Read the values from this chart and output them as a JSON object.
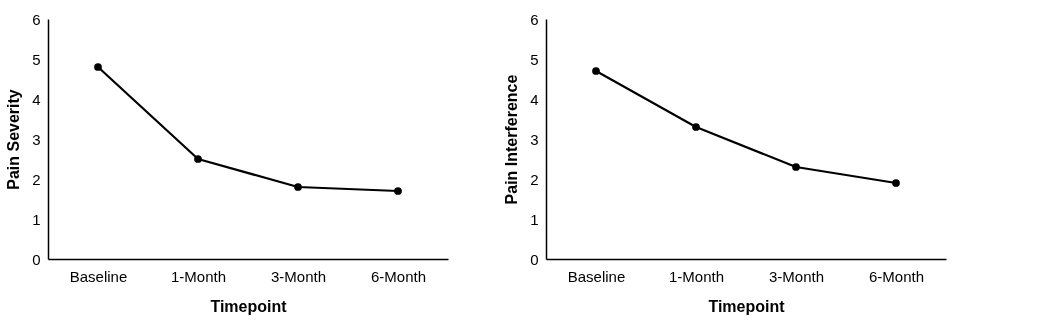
{
  "chart_data": [
    {
      "type": "line",
      "xlabel": "Timepoint",
      "ylabel": "Pain Severity",
      "categories": [
        "Baseline",
        "1-Month",
        "3-Month",
        "6-Month"
      ],
      "series": [
        {
          "color": "#000000",
          "values": [
            4.8,
            2.5,
            1.8,
            1.7
          ]
        }
      ],
      "ylim": [
        0,
        6
      ],
      "yticks": [
        0,
        1,
        2,
        3,
        4,
        5,
        6
      ],
      "grid": false,
      "marker": "circle",
      "line_style": "solid"
    },
    {
      "type": "line",
      "xlabel": "Timepoint",
      "ylabel": "Pain Interference",
      "categories": [
        "Baseline",
        "1-Month",
        "3-Month",
        "6-Month"
      ],
      "series": [
        {
          "color": "#000000",
          "values": [
            4.7,
            3.3,
            2.3,
            1.9
          ]
        }
      ],
      "ylim": [
        0,
        6
      ],
      "yticks": [
        0,
        1,
        2,
        3,
        4,
        5,
        6
      ],
      "grid": false,
      "marker": "circle",
      "line_style": "solid"
    }
  ]
}
